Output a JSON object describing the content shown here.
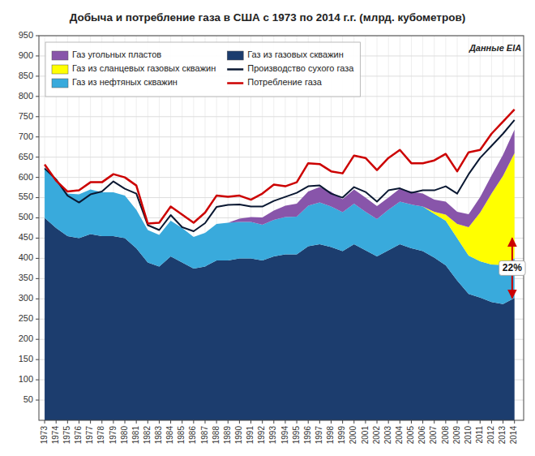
{
  "chart_data": {
    "type": "area",
    "stacked": true,
    "title": "Добыча и потребление газа в США с 1973 по 2014 г.г. (млрд. кубометров)",
    "x": [
      1973,
      1974,
      1975,
      1976,
      1977,
      1978,
      1979,
      1980,
      1981,
      1982,
      1983,
      1984,
      1985,
      1986,
      1987,
      1988,
      1989,
      1990,
      1991,
      1992,
      1993,
      1994,
      1995,
      1996,
      1997,
      1998,
      1999,
      2000,
      2001,
      2002,
      2003,
      2004,
      2005,
      2006,
      2007,
      2008,
      2009,
      2010,
      2011,
      2012,
      2013,
      2014
    ],
    "xlim": [
      1972.5,
      2014.8
    ],
    "xticks": [
      1973,
      1974,
      1975,
      1976,
      1977,
      1978,
      1979,
      1980,
      1981,
      1982,
      1983,
      1984,
      1985,
      1986,
      1987,
      1988,
      1989,
      1990,
      1991,
      1992,
      1993,
      1994,
      1995,
      1996,
      1997,
      1998,
      1999,
      2000,
      2001,
      2002,
      2003,
      2004,
      2005,
      2006,
      2007,
      2008,
      2009,
      2010,
      2011,
      2012,
      2013,
      2014
    ],
    "ylim": [
      0,
      950
    ],
    "yticks": [
      50,
      100,
      150,
      200,
      250,
      300,
      350,
      400,
      450,
      500,
      550,
      600,
      650,
      700,
      750,
      800,
      850,
      900,
      950
    ],
    "grid": true,
    "legend": "upper left",
    "series": [
      {
        "name": "Газ из газовых скважин",
        "type": "area",
        "color": "#1c3d6e",
        "values": [
          500,
          475,
          455,
          450,
          460,
          455,
          455,
          450,
          425,
          390,
          380,
          405,
          390,
          375,
          380,
          395,
          395,
          400,
          400,
          395,
          405,
          410,
          410,
          430,
          435,
          428,
          418,
          435,
          420,
          405,
          420,
          435,
          425,
          418,
          402,
          383,
          345,
          312,
          303,
          292,
          287,
          302
        ]
      },
      {
        "name": "Газ из нефтяных скважин",
        "type": "area",
        "color": "#39aadc",
        "values": [
          125,
          118,
          105,
          108,
          110,
          108,
          108,
          105,
          95,
          80,
          78,
          88,
          85,
          78,
          83,
          90,
          93,
          90,
          90,
          88,
          90,
          92,
          93,
          100,
          103,
          100,
          96,
          100,
          95,
          92,
          100,
          105,
          108,
          110,
          108,
          110,
          105,
          95,
          90,
          93,
          97,
          98
        ]
      },
      {
        "name": "Газ из сланцевых газовых скважин",
        "type": "area",
        "color": "#ffff00",
        "values": [
          0,
          0,
          0,
          0,
          0,
          0,
          0,
          0,
          0,
          0,
          0,
          0,
          0,
          0,
          0,
          0,
          0,
          0,
          0,
          0,
          0,
          0,
          0,
          0,
          0,
          0,
          0,
          0,
          0,
          0,
          0,
          0,
          0,
          0,
          5,
          15,
          35,
          70,
          120,
          175,
          220,
          260
        ]
      },
      {
        "name": "Газ угольных пластов",
        "type": "area",
        "color": "#8855aa",
        "values": [
          0,
          0,
          0,
          0,
          0,
          0,
          0,
          0,
          0,
          0,
          0,
          0,
          0,
          0,
          0,
          0,
          0,
          8,
          12,
          18,
          23,
          28,
          32,
          35,
          38,
          36,
          32,
          35,
          35,
          32,
          30,
          32,
          32,
          32,
          30,
          32,
          30,
          32,
          38,
          45,
          52,
          58
        ]
      },
      {
        "name": "Производство сухого газа",
        "type": "line",
        "color": "#0a1832",
        "values": [
          622,
          595,
          555,
          538,
          558,
          565,
          590,
          572,
          560,
          482,
          470,
          507,
          477,
          467,
          487,
          527,
          532,
          533,
          528,
          528,
          542,
          552,
          562,
          578,
          580,
          560,
          550,
          576,
          564,
          540,
          568,
          573,
          562,
          568,
          568,
          578,
          560,
          608,
          648,
          678,
          708,
          742
        ]
      },
      {
        "name": "Потребление газа",
        "type": "line",
        "color": "#cc0000",
        "values": [
          632,
          592,
          565,
          568,
          588,
          588,
          608,
          600,
          580,
          486,
          488,
          528,
          508,
          488,
          513,
          555,
          552,
          555,
          545,
          560,
          582,
          578,
          588,
          635,
          633,
          615,
          610,
          654,
          648,
          618,
          648,
          668,
          635,
          635,
          642,
          658,
          615,
          662,
          668,
          708,
          738,
          768
        ]
      }
    ],
    "annotations": [
      {
        "text": "Данные EIA",
        "x": 2014.6,
        "y": 928
      },
      {
        "text": "22%",
        "x": 2013.8,
        "y_low": 302,
        "y_high": 450
      }
    ]
  }
}
